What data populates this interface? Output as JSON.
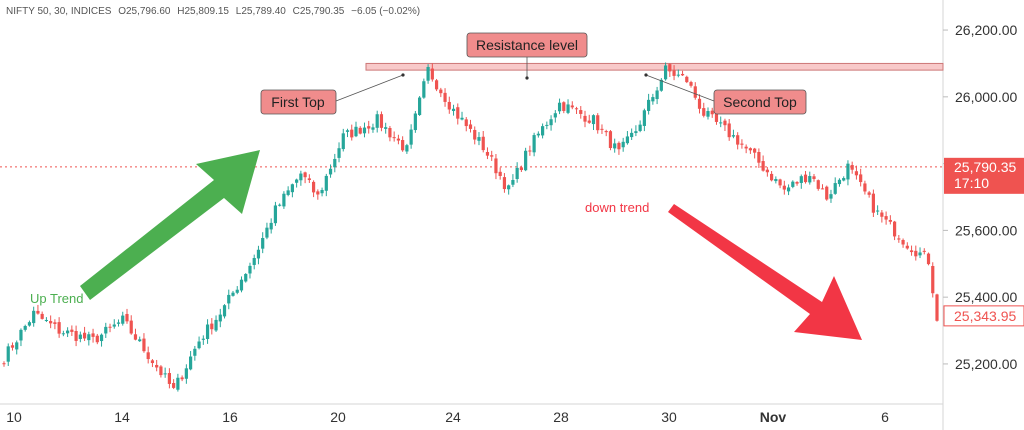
{
  "header": {
    "symbol": "NIFTY 50, 30, INDICES",
    "open_label": "O",
    "open": "25,796.60",
    "high_label": "H",
    "high": "25,809.15",
    "low_label": "L",
    "low": "25,789.40",
    "close_label": "C",
    "close": "25,790.35",
    "change": "−6.05 (−0.02%)"
  },
  "price_tags": {
    "current": "25,790.35",
    "countdown": "17:10",
    "last": "25,343.95"
  },
  "annotations": {
    "resistance": "Resistance level",
    "first_top": "First Top",
    "second_top": "Second Top",
    "up_trend": "Up Trend",
    "down_trend": "down trend"
  },
  "colors": {
    "up": "#26a69a",
    "down": "#ef5350",
    "resistance_fill": "#f8c9c9",
    "label_fill": "#f08c8c",
    "up_arrow": "#4caf50",
    "down_arrow": "#f23645",
    "current_price": "#ef5350"
  },
  "chart_data": {
    "type": "candlestick",
    "x_tick_labels": [
      "10",
      "14",
      "16",
      "20",
      "24",
      "28",
      "30",
      "Nov",
      "6"
    ],
    "y_tick_labels": [
      "25,200.00",
      "25,400.00",
      "25,600.00",
      "25,800.00",
      "26,000.00",
      "26,200.00"
    ],
    "y_ticks": [
      25200,
      25400,
      25600,
      25800,
      26000,
      26200
    ],
    "ylim": [
      25080,
      26290
    ],
    "resistance_level": [
      26080,
      26100
    ],
    "current_price": 25790.35,
    "last_price": 25343.95,
    "segments": [
      {
        "from": 25200,
        "to": 25350,
        "n": 8
      },
      {
        "from": 25350,
        "to": 25300,
        "n": 6
      },
      {
        "from": 25300,
        "to": 25270,
        "n": 8
      },
      {
        "from": 25270,
        "to": 25330,
        "n": 7
      },
      {
        "from": 25330,
        "to": 25210,
        "n": 7
      },
      {
        "from": 25210,
        "to": 25120,
        "n": 5
      },
      {
        "from": 25120,
        "to": 25270,
        "n": 6
      },
      {
        "from": 25270,
        "to": 25370,
        "n": 6
      },
      {
        "from": 25370,
        "to": 25520,
        "n": 7
      },
      {
        "from": 25520,
        "to": 25660,
        "n": 5
      },
      {
        "from": 25660,
        "to": 25770,
        "n": 6
      },
      {
        "from": 25770,
        "to": 25700,
        "n": 4
      },
      {
        "from": 25700,
        "to": 25880,
        "n": 6
      },
      {
        "from": 25880,
        "to": 25930,
        "n": 8
      },
      {
        "from": 25930,
        "to": 25840,
        "n": 7
      },
      {
        "from": 25840,
        "to": 26080,
        "n": 5
      },
      {
        "from": 26080,
        "to": 25960,
        "n": 6
      },
      {
        "from": 25960,
        "to": 25850,
        "n": 7
      },
      {
        "from": 25850,
        "to": 25720,
        "n": 6
      },
      {
        "from": 25720,
        "to": 25850,
        "n": 5
      },
      {
        "from": 25850,
        "to": 25980,
        "n": 7
      },
      {
        "from": 25980,
        "to": 25930,
        "n": 8
      },
      {
        "from": 25930,
        "to": 25830,
        "n": 6
      },
      {
        "from": 25830,
        "to": 25900,
        "n": 4
      },
      {
        "from": 25900,
        "to": 26080,
        "n": 7
      },
      {
        "from": 26080,
        "to": 26050,
        "n": 5
      },
      {
        "from": 26050,
        "to": 25950,
        "n": 4
      },
      {
        "from": 25950,
        "to": 25870,
        "n": 8
      },
      {
        "from": 25870,
        "to": 25790,
        "n": 6
      },
      {
        "from": 25790,
        "to": 25720,
        "n": 5
      },
      {
        "from": 25720,
        "to": 25770,
        "n": 6
      },
      {
        "from": 25770,
        "to": 25700,
        "n": 4
      },
      {
        "from": 25700,
        "to": 25790,
        "n": 5
      },
      {
        "from": 25790,
        "to": 25650,
        "n": 7
      },
      {
        "from": 25650,
        "to": 25560,
        "n": 7
      },
      {
        "from": 25560,
        "to": 25510,
        "n": 5
      },
      {
        "from": 25510,
        "to": 25340,
        "n": 2
      }
    ]
  }
}
